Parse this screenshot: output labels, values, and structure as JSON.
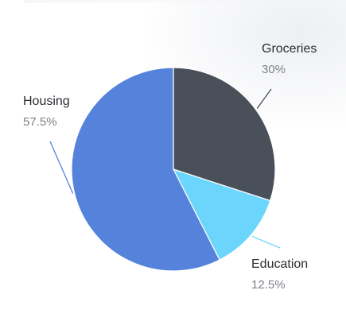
{
  "chart_data": {
    "type": "pie",
    "title": "",
    "start_angle_deg": 0,
    "direction": "clockwise",
    "slices": [
      {
        "label": "Groceries",
        "value": 30,
        "display": "30%",
        "color": "#4a5059",
        "leader_color": "#4a5059"
      },
      {
        "label": "Education",
        "value": 12.5,
        "display": "12.5%",
        "color": "#6cd5fb",
        "leader_color": "#6cd5fb"
      },
      {
        "label": "Housing",
        "value": 57.5,
        "display": "57.5%",
        "color": "#5583dc",
        "leader_color": "#5583dc"
      }
    ],
    "legend": "none"
  }
}
